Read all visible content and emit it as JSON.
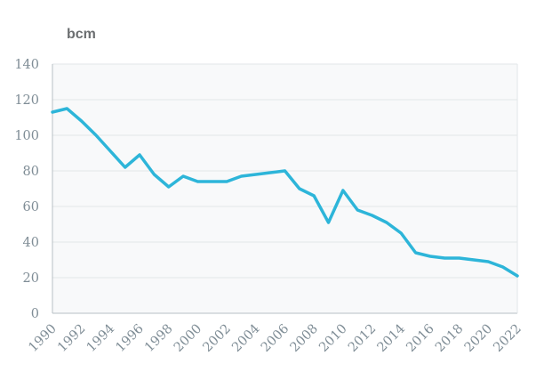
{
  "unit_label": "bcm",
  "chart_data": {
    "type": "line",
    "title": "",
    "xlabel": "",
    "ylabel": "bcm",
    "x": [
      1990,
      1991,
      1992,
      1993,
      1994,
      1995,
      1996,
      1997,
      1998,
      1999,
      2000,
      2001,
      2002,
      2003,
      2004,
      2005,
      2006,
      2007,
      2008,
      2009,
      2010,
      2011,
      2012,
      2013,
      2014,
      2015,
      2016,
      2017,
      2018,
      2019,
      2020,
      2021,
      2022
    ],
    "series": [
      {
        "name": "bcm",
        "values": [
          113,
          115,
          108,
          100,
          91,
          82,
          89,
          78,
          71,
          77,
          74,
          74,
          74,
          77,
          78,
          79,
          80,
          70,
          66,
          51,
          69,
          58,
          55,
          51,
          45,
          34,
          32,
          31,
          31,
          30,
          29,
          26,
          21
        ]
      }
    ],
    "ylim": [
      0,
      140
    ],
    "y_ticks": [
      0,
      20,
      40,
      60,
      80,
      100,
      120,
      140
    ],
    "x_tick_labels": [
      "1990",
      "1992",
      "1994",
      "1996",
      "1998",
      "2000",
      "2002",
      "2004",
      "2006",
      "2008",
      "2010",
      "2012",
      "2014",
      "2016",
      "2018",
      "2020",
      "2022"
    ],
    "grid": "horizontal",
    "legend": "none",
    "colors": {
      "line": "#2db5d9",
      "grid": "#e2e6e8",
      "axis": "#b7bfc4",
      "tick_text": "#7f8d96",
      "plot_background": "#f8f9fa",
      "unit_label_text": "#6b6e70"
    }
  }
}
